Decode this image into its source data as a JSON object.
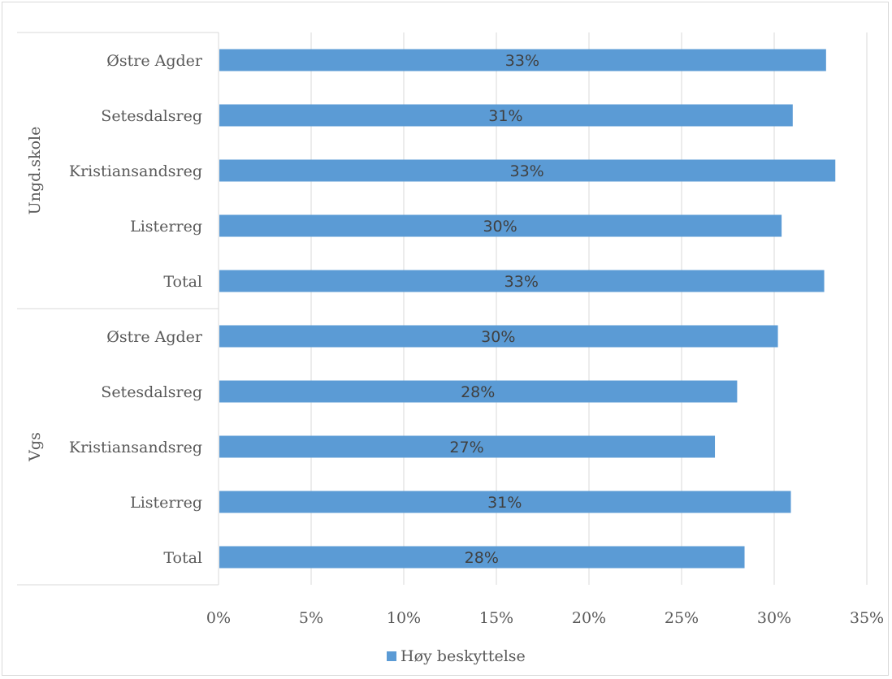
{
  "chart_data": {
    "type": "bar",
    "orientation": "horizontal",
    "groups": [
      {
        "label": "Ungd.skole",
        "categories": [
          "Østre Agder",
          "Setesdalsreg",
          "Kristiansandsreg",
          "Listerreg",
          "Total"
        ],
        "values": [
          32.8,
          31.0,
          33.3,
          30.4,
          32.7
        ],
        "data_labels": [
          "33%",
          "31%",
          "33%",
          "30%",
          "33%"
        ]
      },
      {
        "label": "Vgs",
        "categories": [
          "Østre Agder",
          "Setesdalsreg",
          "Kristiansandsreg",
          "Listerreg",
          "Total"
        ],
        "values": [
          30.2,
          28.0,
          26.8,
          30.9,
          28.4
        ],
        "data_labels": [
          "30%",
          "28%",
          "27%",
          "31%",
          "28%"
        ]
      }
    ],
    "series": [
      {
        "name": "Høy beskyttelse",
        "color": "#5b9bd5"
      }
    ],
    "x_ticks": [
      "0%",
      "5%",
      "10%",
      "15%",
      "20%",
      "25%",
      "30%",
      "35%"
    ],
    "xlim": [
      0,
      35
    ],
    "x_tick_step": 5,
    "grid": true,
    "legend_position": "bottom",
    "title": "",
    "xlabel": "",
    "ylabel": ""
  }
}
